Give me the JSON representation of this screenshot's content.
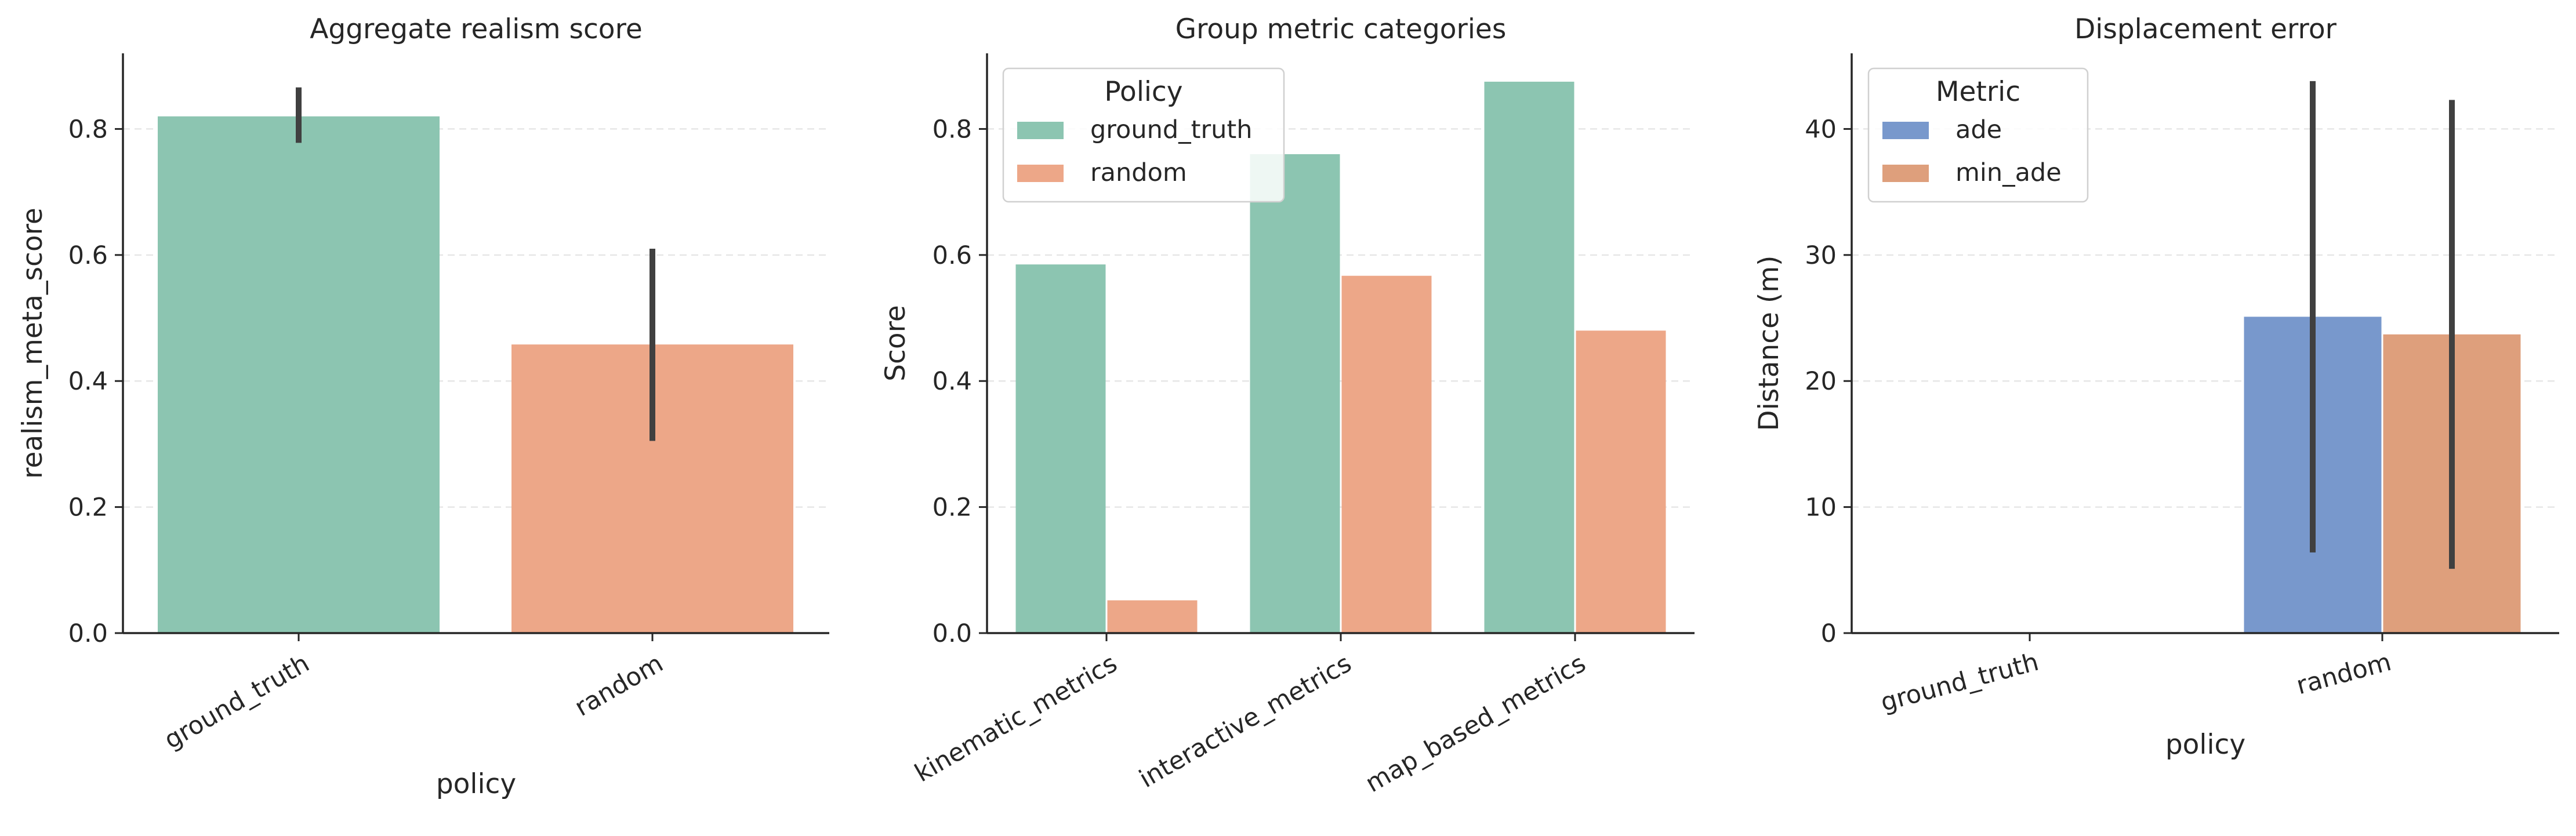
{
  "chart_data": [
    {
      "type": "bar",
      "title": "Aggregate realism score",
      "xlabel": "policy",
      "ylabel": "realism_meta_score",
      "categories": [
        "ground_truth",
        "random"
      ],
      "values": [
        0.82,
        0.458
      ],
      "error_bars": [
        [
          0.778,
          0.866
        ],
        [
          0.305,
          0.61
        ]
      ],
      "colors": [
        "#8cc5b1",
        "#eda788"
      ],
      "ylim": [
        0,
        0.92
      ],
      "yticks": [
        "0.0",
        "0.2",
        "0.4",
        "0.6",
        "0.8"
      ],
      "grid": "horizontal dashed"
    },
    {
      "type": "bar",
      "title": "Group metric categories",
      "xlabel": "",
      "ylabel": "Score",
      "categories": [
        "kinematic_metrics",
        "interactive_metrics",
        "map_based_metrics"
      ],
      "series": [
        {
          "name": "ground_truth",
          "values": [
            0.585,
            0.76,
            0.875
          ],
          "color": "#8cc5b1"
        },
        {
          "name": "random",
          "values": [
            0.052,
            0.567,
            0.48
          ],
          "color": "#eda788"
        }
      ],
      "ylim": [
        0,
        0.92
      ],
      "yticks": [
        "0.0",
        "0.2",
        "0.4",
        "0.6",
        "0.8"
      ],
      "legend": {
        "title": "Policy",
        "placement": "top-left"
      },
      "grid": "horizontal dashed"
    },
    {
      "type": "bar",
      "title": "Displacement error",
      "xlabel": "policy",
      "ylabel": "Distance (m)",
      "categories": [
        "ground_truth",
        "random"
      ],
      "series": [
        {
          "name": "ade",
          "values": [
            0,
            25.1
          ],
          "error_bars": [
            null,
            [
              6.4,
              43.8
            ]
          ],
          "color": "#7898cc"
        },
        {
          "name": "min_ade",
          "values": [
            0,
            23.7
          ],
          "error_bars": [
            null,
            [
              5.1,
              42.3
            ]
          ],
          "color": "#de9f7c"
        }
      ],
      "ylim": [
        0,
        46
      ],
      "yticks": [
        "0",
        "10",
        "20",
        "30",
        "40"
      ],
      "legend": {
        "title": "Metric",
        "placement": "top-left"
      },
      "grid": "horizontal dashed"
    }
  ]
}
